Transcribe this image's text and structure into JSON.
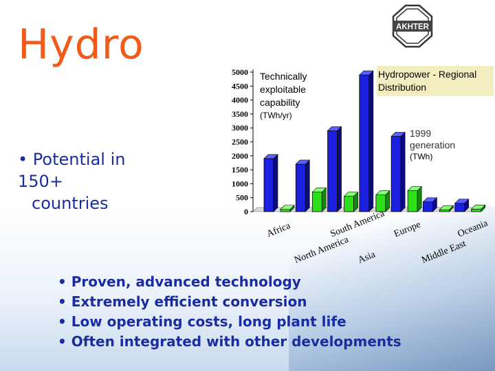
{
  "slide": {
    "title": "Hydro",
    "logo_text": "AKHTER",
    "left_bullet": {
      "bullet": "•",
      "line1": "Potential in",
      "line2": "150+",
      "line3": "countries"
    },
    "bottom_bullets": [
      "Proven, advanced technology",
      "Extremely efficient conversion",
      "Low operating costs, long plant life",
      "Often integrated with other developments"
    ],
    "colors": {
      "title": "#f05a1a",
      "bullets": "#1a2da0",
      "series_blue": "#1a1fe0",
      "series_green": "#2ee01a",
      "legend_box": "#f2eec0"
    }
  },
  "chart_data": {
    "type": "bar",
    "title": "Hydropower - Regional Distribution",
    "categories": [
      "Africa",
      "North America",
      "South America",
      "Asia",
      "Europe",
      "Middle East",
      "Oceania"
    ],
    "series": [
      {
        "name": "Technically exploitable capability",
        "unit": "(TWh/yr)",
        "values": [
          1900,
          1700,
          2900,
          4900,
          2700,
          350,
          300
        ]
      },
      {
        "name": "1999 generation",
        "unit": "(TWh)",
        "values": [
          80,
          700,
          550,
          600,
          750,
          70,
          90
        ]
      }
    ],
    "y_ticks": [
      0,
      500,
      1000,
      1500,
      2000,
      2500,
      3000,
      3500,
      4000,
      4500,
      5000
    ],
    "ylim": [
      0,
      5000
    ],
    "grid": false
  }
}
